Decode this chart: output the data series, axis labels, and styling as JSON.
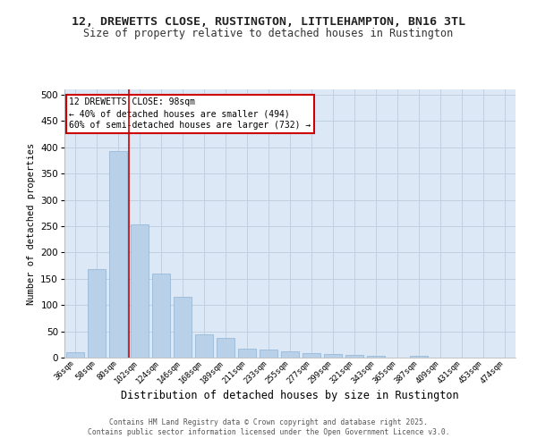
{
  "title_line1": "12, DREWETTS CLOSE, RUSTINGTON, LITTLEHAMPTON, BN16 3TL",
  "title_line2": "Size of property relative to detached houses in Rustington",
  "xlabel": "Distribution of detached houses by size in Rustington",
  "ylabel": "Number of detached properties",
  "categories": [
    "36sqm",
    "58sqm",
    "80sqm",
    "102sqm",
    "124sqm",
    "146sqm",
    "168sqm",
    "189sqm",
    "211sqm",
    "233sqm",
    "255sqm",
    "277sqm",
    "299sqm",
    "321sqm",
    "343sqm",
    "365sqm",
    "387sqm",
    "409sqm",
    "431sqm",
    "453sqm",
    "474sqm"
  ],
  "values": [
    10,
    168,
    393,
    253,
    160,
    115,
    44,
    37,
    17,
    15,
    12,
    8,
    6,
    5,
    3,
    0,
    3,
    0,
    0,
    0,
    0
  ],
  "bar_color": "#b8d0e8",
  "bar_edge_color": "#90b4d4",
  "grid_color": "#c0d0e0",
  "background_color": "#dce8f5",
  "plot_bg_color": "#dce8f5",
  "fig_bg_color": "#ffffff",
  "vline_color": "#cc0000",
  "vline_x": 2.5,
  "annotation_title": "12 DREWETTS CLOSE: 98sqm",
  "annotation_line2": "← 40% of detached houses are smaller (494)",
  "annotation_line3": "60% of semi-detached houses are larger (732) →",
  "annotation_box_color": "#ffffff",
  "annotation_box_edge": "#cc0000",
  "footer_line1": "Contains HM Land Registry data © Crown copyright and database right 2025.",
  "footer_line2": "Contains public sector information licensed under the Open Government Licence v3.0.",
  "ylim": [
    0,
    510
  ],
  "yticks": [
    0,
    50,
    100,
    150,
    200,
    250,
    300,
    350,
    400,
    450,
    500
  ]
}
